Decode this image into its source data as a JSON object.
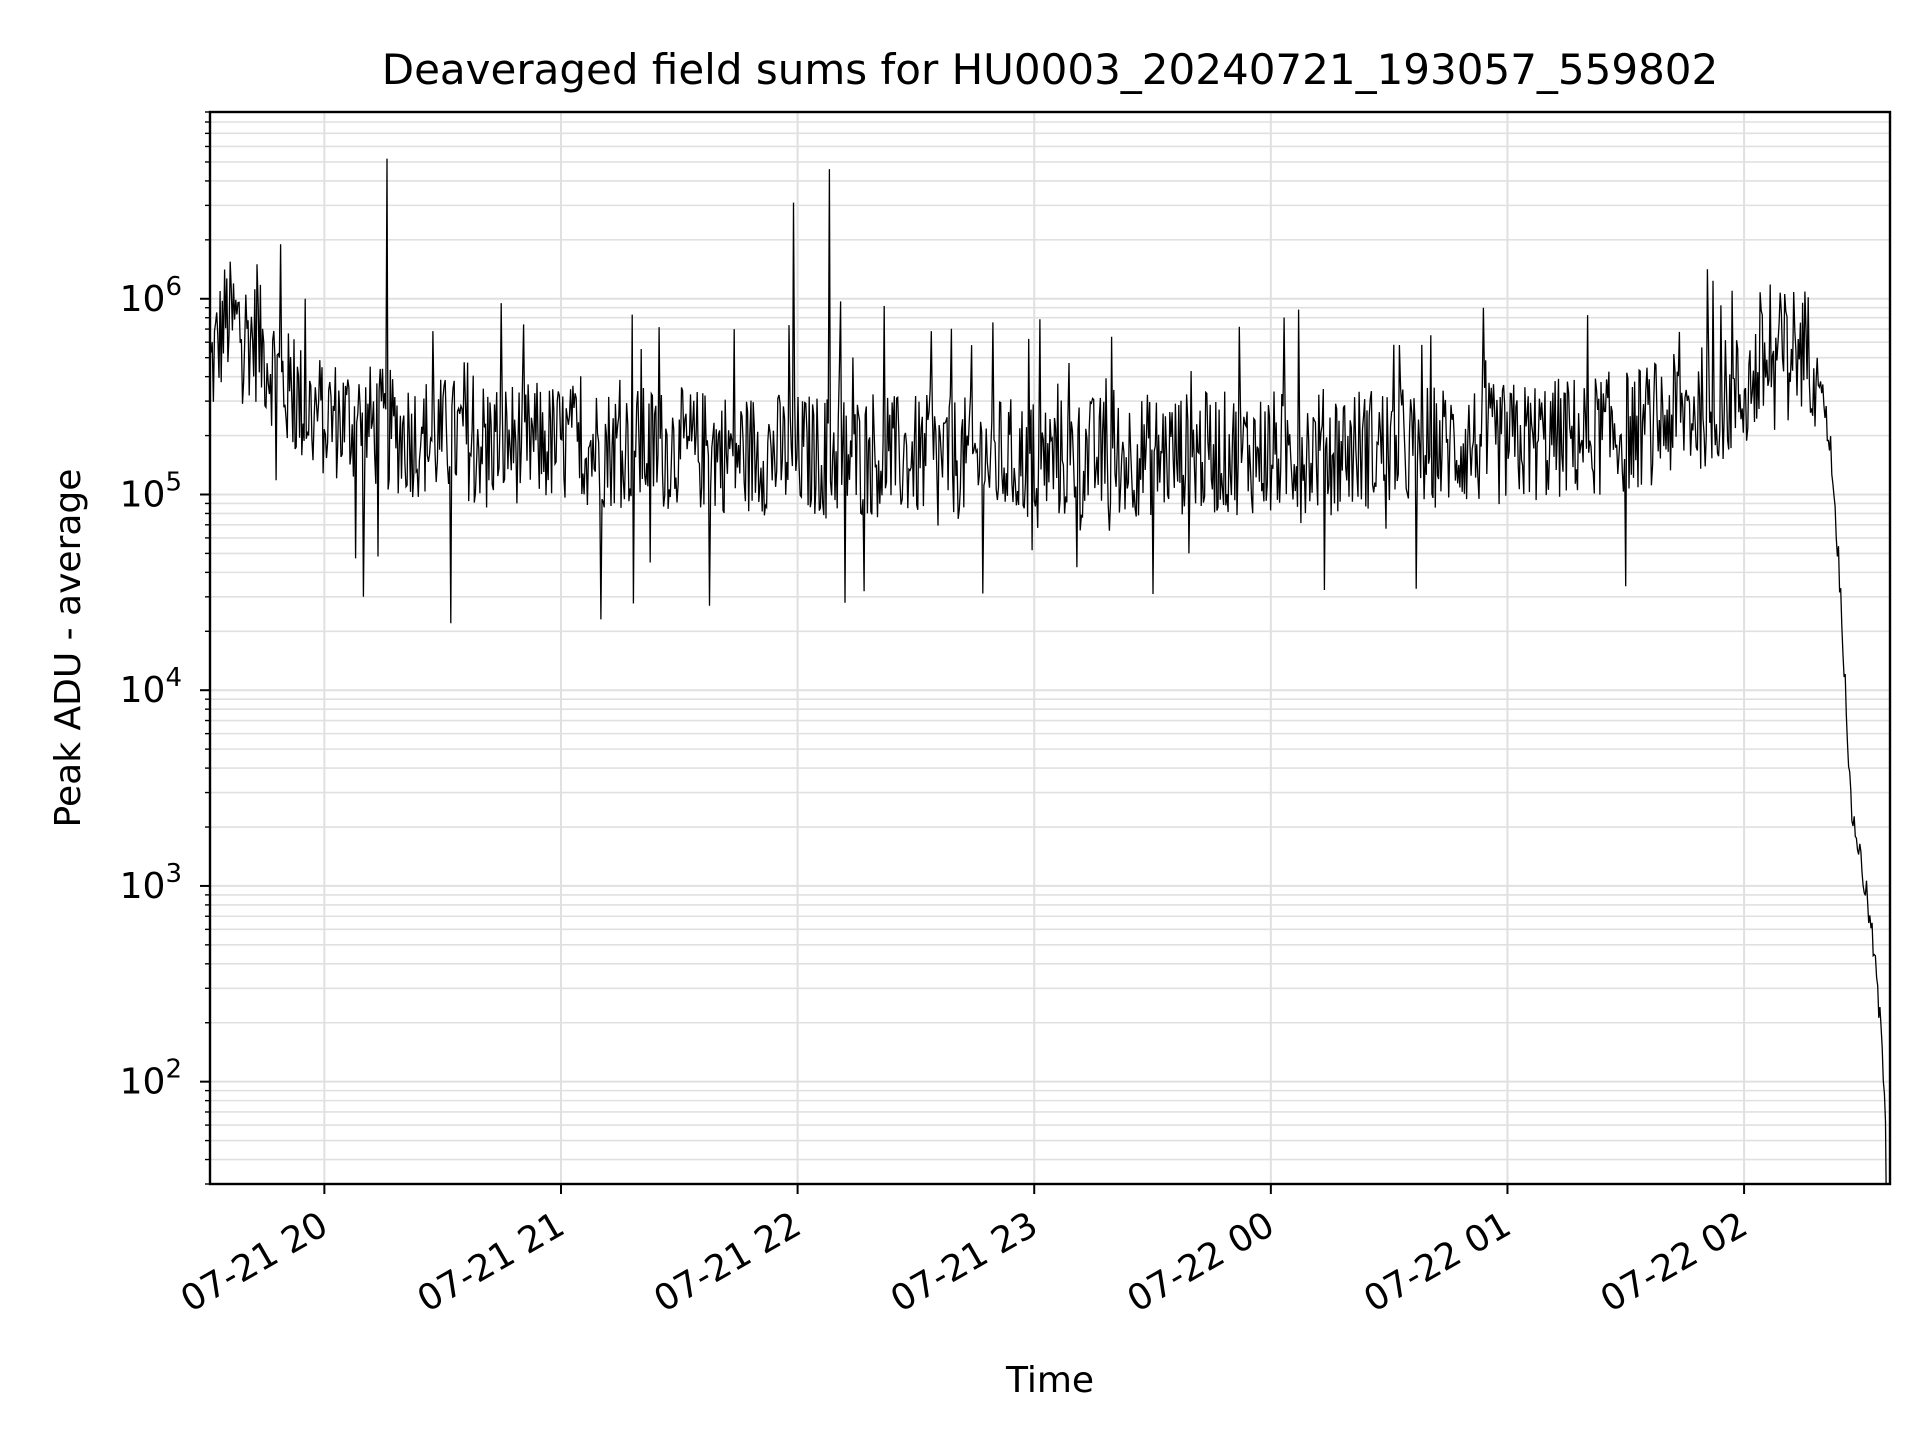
{
  "chart_data": {
    "type": "line",
    "title": "Deaveraged field sums for HU0003_20240721_193057_559802",
    "xlabel": "Time",
    "ylabel": "Peak ADU - average",
    "y_scale": "log",
    "ylim": [
      30,
      9000000
    ],
    "xlim": [
      "2024-07-21 19:31",
      "2024-07-22 02:37"
    ],
    "grid": {
      "major": true,
      "minor_y": true,
      "color": "#e0e0e0"
    },
    "line_color": "#000000",
    "x_ticks": [
      {
        "t": "2024-07-21 20:00",
        "label": "07-21 20"
      },
      {
        "t": "2024-07-21 21:00",
        "label": "07-21 21"
      },
      {
        "t": "2024-07-21 22:00",
        "label": "07-21 22"
      },
      {
        "t": "2024-07-21 23:00",
        "label": "07-21 23"
      },
      {
        "t": "2024-07-22 00:00",
        "label": "07-22 00"
      },
      {
        "t": "2024-07-22 01:00",
        "label": "07-22 01"
      },
      {
        "t": "2024-07-22 02:00",
        "label": "07-22 02"
      }
    ],
    "y_ticks": [
      {
        "value": 100,
        "base": "10",
        "exp": "2"
      },
      {
        "value": 1000,
        "base": "10",
        "exp": "3"
      },
      {
        "value": 10000,
        "base": "10",
        "exp": "4"
      },
      {
        "value": 100000,
        "base": "10",
        "exp": "5"
      },
      {
        "value": 1000000,
        "base": "10",
        "exp": "6"
      }
    ],
    "series": [
      {
        "points": [
          [
            "2024-07-21 19:31",
            420000
          ],
          [
            "2024-07-21 19:35",
            800000
          ],
          [
            "2024-07-21 19:39",
            700000
          ],
          [
            "2024-07-21 19:43",
            600000
          ],
          [
            "2024-07-21 19:47",
            450000
          ],
          [
            "2024-07-21 19:51",
            330000
          ],
          [
            "2024-07-21 19:55",
            280000
          ],
          [
            "2024-07-21 20:00",
            250000
          ],
          [
            "2024-07-21 20:10",
            230000
          ],
          [
            "2024-07-21 20:20",
            200000
          ],
          [
            "2024-07-21 20:40",
            190000
          ],
          [
            "2024-07-21 21:00",
            180000
          ],
          [
            "2024-07-21 21:30",
            170000
          ],
          [
            "2024-07-21 22:00",
            160000
          ],
          [
            "2024-07-21 22:30",
            155000
          ],
          [
            "2024-07-21 23:00",
            150000
          ],
          [
            "2024-07-21 23:30",
            160000
          ],
          [
            "2024-07-22 00:00",
            165000
          ],
          [
            "2024-07-22 00:30",
            175000
          ],
          [
            "2024-07-22 01:00",
            180000
          ],
          [
            "2024-07-22 01:30",
            210000
          ],
          [
            "2024-07-22 01:45",
            260000
          ],
          [
            "2024-07-22 02:00",
            330000
          ],
          [
            "2024-07-22 02:06",
            480000
          ],
          [
            "2024-07-22 02:12",
            580000
          ],
          [
            "2024-07-22 02:16",
            560000
          ],
          [
            "2024-07-22 02:19",
            420000
          ],
          [
            "2024-07-22 02:22",
            170000
          ],
          [
            "2024-07-22 02:24",
            45000
          ],
          [
            "2024-07-22 02:26",
            8000
          ],
          [
            "2024-07-22 02:27",
            2600
          ],
          [
            "2024-07-22 02:29",
            1600
          ],
          [
            "2024-07-22 02:31",
            900
          ],
          [
            "2024-07-22 02:33",
            450
          ],
          [
            "2024-07-22 02:35",
            150
          ],
          [
            "2024-07-22 02:36",
            65
          ],
          [
            "2024-07-22 02:36",
            30
          ]
        ],
        "spikes": [
          [
            "2024-07-21 19:43",
            1500000
          ],
          [
            "2024-07-21 19:49",
            1900000
          ],
          [
            "2024-07-21 19:55",
            1000000
          ],
          [
            "2024-07-21 20:16",
            5200000
          ],
          [
            "2024-07-21 20:10",
            30000
          ],
          [
            "2024-07-21 20:32",
            22000
          ],
          [
            "2024-07-21 21:18",
            830000
          ],
          [
            "2024-07-21 21:10",
            23000
          ],
          [
            "2024-07-21 21:44",
            700000
          ],
          [
            "2024-07-21 21:59",
            3100000
          ],
          [
            "2024-07-21 22:08",
            4600000
          ],
          [
            "2024-07-21 22:12",
            28000
          ],
          [
            "2024-07-21 22:44",
            580000
          ],
          [
            "2024-07-21 23:30",
            31000
          ],
          [
            "2024-07-21 23:52",
            720000
          ],
          [
            "2024-07-22 00:07",
            880000
          ],
          [
            "2024-07-22 00:37",
            33000
          ],
          [
            "2024-07-22 00:54",
            900000
          ],
          [
            "2024-07-22 01:30",
            34000
          ],
          [
            "2024-07-22 01:57",
            1100000
          ],
          [
            "2024-07-22 02:04",
            1080000
          ]
        ]
      }
    ]
  }
}
